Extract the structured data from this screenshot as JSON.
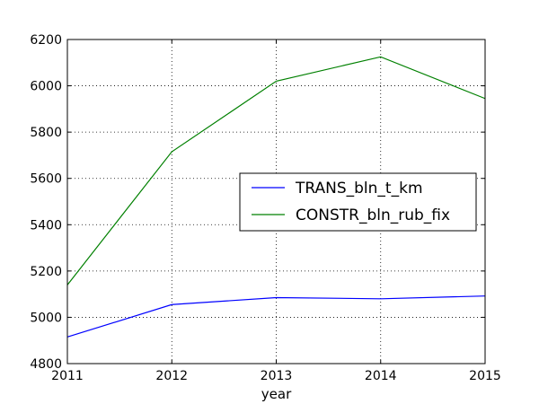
{
  "chart_data": {
    "type": "line",
    "title": "",
    "xlabel": "year",
    "ylabel": "",
    "x": [
      2011,
      2012,
      2013,
      2014,
      2015
    ],
    "xlim": [
      2011,
      2015
    ],
    "ylim": [
      4800,
      6200
    ],
    "xticks": [
      "2011",
      "2012",
      "2013",
      "2014",
      "2015"
    ],
    "yticks": [
      "4800",
      "5000",
      "5200",
      "5400",
      "5600",
      "5800",
      "6000",
      "6200"
    ],
    "grid": true,
    "legend_position": "right",
    "series": [
      {
        "name": "TRANS_bln_t_km",
        "color": "#0000ff",
        "values": [
          4915,
          5055,
          5085,
          5080,
          5092
        ]
      },
      {
        "name": "CONSTR_bln_rub_fix",
        "color": "#008000",
        "values": [
          5140,
          5715,
          6020,
          6125,
          5945
        ]
      }
    ]
  }
}
